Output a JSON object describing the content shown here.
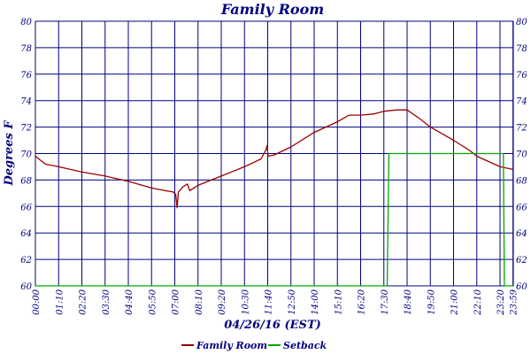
{
  "chart_data": {
    "type": "line",
    "title": "Family Room",
    "xlabel": "04/26/16 (EST)",
    "ylabel": "Degrees F",
    "ylim": [
      60,
      80
    ],
    "yticks": [
      60,
      62,
      64,
      66,
      68,
      70,
      72,
      74,
      76,
      78,
      80
    ],
    "xlim_minutes": [
      0,
      1440
    ],
    "xticks": [
      "00:00",
      "01:10",
      "02:20",
      "03:30",
      "04:40",
      "05:50",
      "07:00",
      "08:10",
      "09:20",
      "10:30",
      "11:40",
      "12:50",
      "14:00",
      "15:10",
      "16:20",
      "17:30",
      "18:40",
      "19:50",
      "21:00",
      "22:10",
      "23:20",
      "23:59"
    ],
    "grid": true,
    "legend_position": "bottom",
    "series": [
      {
        "name": "Family Room",
        "color": "#990000",
        "points": [
          [
            "00:00",
            69.8
          ],
          [
            "00:30",
            69.2
          ],
          [
            "01:10",
            69.0
          ],
          [
            "02:20",
            68.6
          ],
          [
            "03:30",
            68.3
          ],
          [
            "04:40",
            67.9
          ],
          [
            "05:50",
            67.4
          ],
          [
            "06:30",
            67.2
          ],
          [
            "06:55",
            67.1
          ],
          [
            "07:03",
            66.9
          ],
          [
            "07:07",
            65.9
          ],
          [
            "07:11",
            67.1
          ],
          [
            "07:25",
            67.5
          ],
          [
            "07:38",
            67.7
          ],
          [
            "07:45",
            67.2
          ],
          [
            "08:10",
            67.6
          ],
          [
            "09:20",
            68.3
          ],
          [
            "10:30",
            69.0
          ],
          [
            "11:20",
            69.6
          ],
          [
            "11:35",
            70.3
          ],
          [
            "11:38",
            70.6
          ],
          [
            "11:41",
            69.8
          ],
          [
            "12:00",
            69.9
          ],
          [
            "12:50",
            70.5
          ],
          [
            "14:00",
            71.6
          ],
          [
            "15:10",
            72.4
          ],
          [
            "15:45",
            72.9
          ],
          [
            "16:20",
            72.9
          ],
          [
            "17:00",
            73.0
          ],
          [
            "17:30",
            73.2
          ],
          [
            "18:10",
            73.3
          ],
          [
            "18:40",
            73.3
          ],
          [
            "19:20",
            72.6
          ],
          [
            "19:50",
            72.0
          ],
          [
            "21:00",
            71.0
          ],
          [
            "21:50",
            70.2
          ],
          [
            "22:10",
            69.8
          ],
          [
            "23:20",
            69.0
          ],
          [
            "23:59",
            68.8
          ]
        ]
      },
      {
        "name": "Setback",
        "color": "#00aa00",
        "points": [
          [
            "00:00",
            60.0
          ],
          [
            "17:40",
            60.0
          ],
          [
            "17:45",
            70.0
          ],
          [
            "23:30",
            70.0
          ],
          [
            "23:33",
            60.0
          ],
          [
            "23:59",
            60.0
          ]
        ]
      }
    ]
  }
}
